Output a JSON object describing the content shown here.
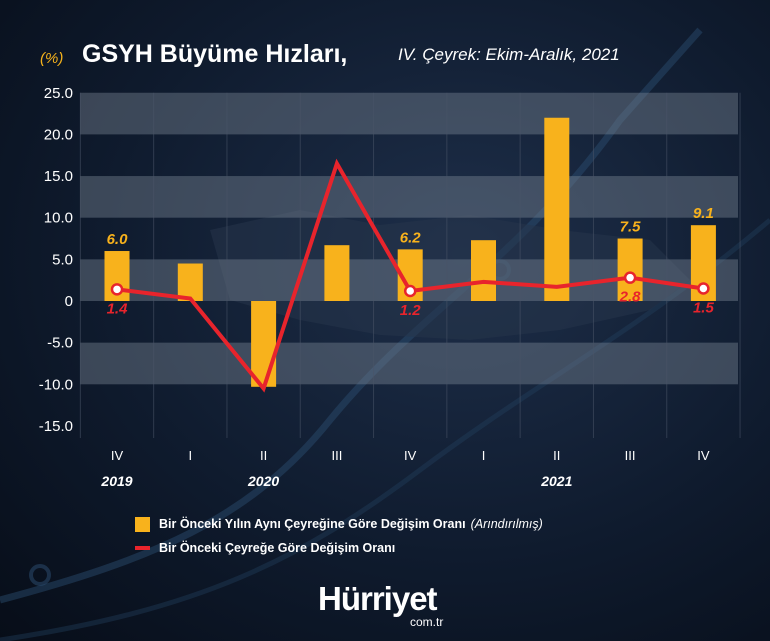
{
  "header": {
    "unit": "(%)",
    "title": "GSYH Büyüme Hızları,",
    "subtitle": "IV. Çeyrek: Ekim-Aralık, 2021"
  },
  "chart_data": {
    "type": "bar",
    "categories": [
      "IV",
      "I",
      "II",
      "III",
      "IV",
      "I",
      "II",
      "III",
      "IV"
    ],
    "year_labels": [
      "2019",
      "2020",
      "2021"
    ],
    "series": [
      {
        "name": "Bir Önceki Yılın Aynı Çeyreğine Göre Değişim Oranı",
        "type": "bar",
        "color": "#f8b21c",
        "values": [
          6.0,
          4.5,
          -10.3,
          6.7,
          6.2,
          7.3,
          22.0,
          7.5,
          9.1
        ],
        "data_labels": [
          "6.0",
          "",
          "",
          "",
          "6.2",
          "",
          "",
          "7.5",
          "9.1"
        ]
      },
      {
        "name": "Bir Önceki Çeyreğe Göre Değişim Oranı",
        "type": "line",
        "color": "#e8242c",
        "values": [
          1.4,
          0.3,
          -10.5,
          16.5,
          1.2,
          2.3,
          1.7,
          2.8,
          1.5
        ],
        "data_labels": [
          "1.4",
          "",
          "",
          "",
          "1.2",
          "",
          "",
          "2.8",
          "1.5"
        ]
      }
    ],
    "yticks": [
      "25.0",
      "20.0",
      "15.0",
      "10.0",
      "5.0",
      "0",
      "-5.0",
      "-10.0",
      "-15.0"
    ],
    "ylim": [
      -15,
      25
    ],
    "grid": true
  },
  "legend": {
    "bar_label": "Bir Önceki Yılın Aynı Çeyreğine Göre Değişim Oranı",
    "bar_note": "(Arındırılmış)",
    "line_label": "Bir Önceki Çeyreğe Göre Değişim Oranı"
  },
  "brand": {
    "name": "Hürriyet",
    "domain": "com.tr"
  }
}
